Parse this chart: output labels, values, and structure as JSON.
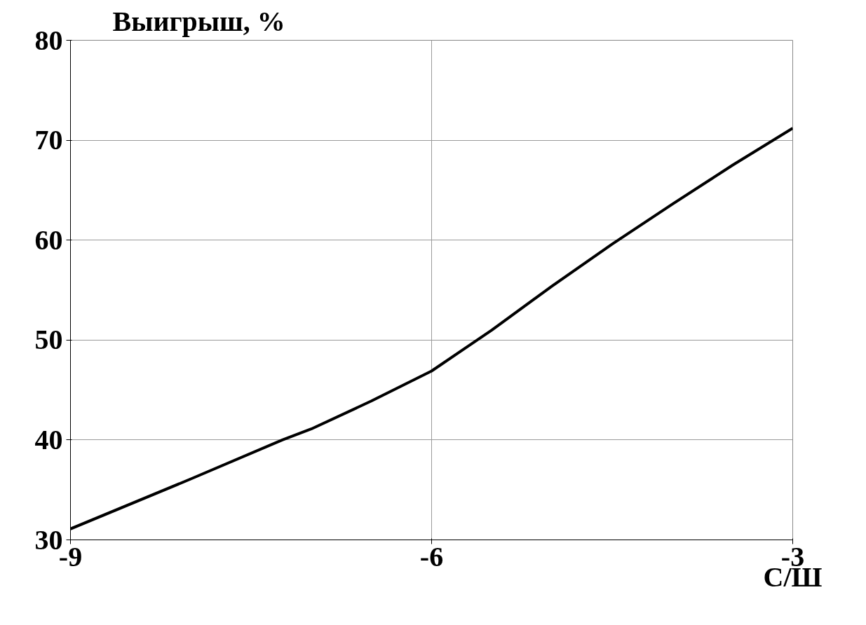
{
  "chart_data": {
    "type": "line",
    "xlabel": "С/Ш",
    "ylabel": "Выигрыш, %",
    "x": [
      -9,
      -8,
      -7.24,
      -7,
      -6.5,
      -6,
      -5.5,
      -5,
      -4.5,
      -4,
      -3.5,
      -3
    ],
    "series": [
      {
        "color": "#000000",
        "values": [
          31.1,
          36.1,
          40,
          41.1,
          43.9,
          46.9,
          51,
          55.4,
          59.6,
          63.6,
          67.5,
          71.2
        ]
      }
    ],
    "xlim": [
      -9,
      -3
    ],
    "xticks": [
      {
        "value": -9,
        "label": "-9"
      },
      {
        "value": -6,
        "label": "-6"
      },
      {
        "value": -3,
        "label": "-3"
      }
    ],
    "ylim": [
      30,
      80
    ],
    "yticks": [
      30,
      40,
      50,
      60,
      70,
      80
    ],
    "grid": true,
    "marker": "none",
    "line_style": "solid"
  }
}
